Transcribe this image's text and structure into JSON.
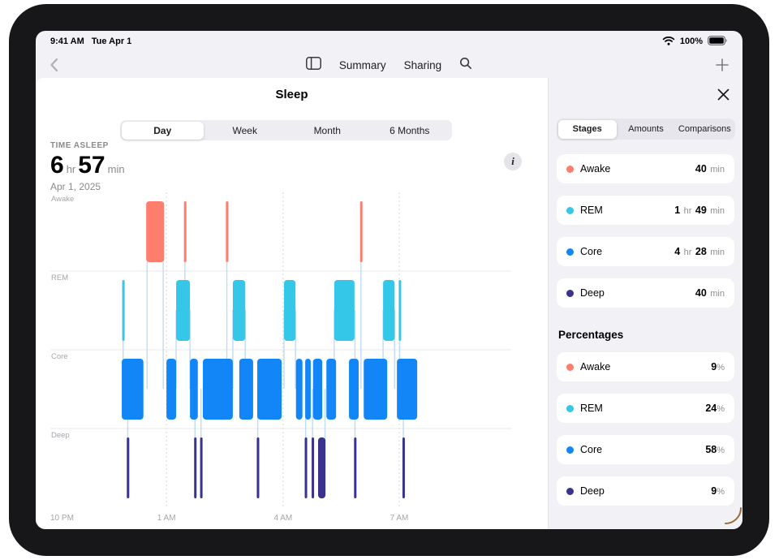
{
  "device": {
    "time": "9:41 AM",
    "date": "Tue Apr 1",
    "battery_label": "100%"
  },
  "nav": {
    "items": [
      "Summary",
      "Sharing"
    ]
  },
  "main": {
    "title": "Sleep",
    "tabs": [
      "Day",
      "Week",
      "Month",
      "6 Months"
    ],
    "selected_tab": "Day",
    "metric_label": "TIME ASLEEP",
    "metric_parts": [
      {
        "t": "6",
        "big": true
      },
      {
        "t": "hr",
        "big": false
      },
      {
        "t": "57",
        "big": true
      },
      {
        "t": "min",
        "big": false
      }
    ],
    "date_label": "Apr 1, 2025",
    "info_glyph": "i"
  },
  "sidebar": {
    "tabs": [
      "Stages",
      "Amounts",
      "Comparisons"
    ],
    "selected_tab": "Stages",
    "durations": [
      {
        "name": "Awake",
        "color": "#FF7D6C",
        "parts": [
          {
            "t": "40",
            "strong": true
          },
          {
            "t": "min",
            "strong": false
          }
        ]
      },
      {
        "name": "REM",
        "color": "#35C7E8",
        "parts": [
          {
            "t": "1",
            "strong": true
          },
          {
            "t": "hr",
            "strong": false
          },
          {
            "t": "49",
            "strong": true
          },
          {
            "t": "min",
            "strong": false
          }
        ]
      },
      {
        "name": "Core",
        "color": "#1386F7",
        "parts": [
          {
            "t": "4",
            "strong": true
          },
          {
            "t": "hr",
            "strong": false
          },
          {
            "t": "28",
            "strong": true
          },
          {
            "t": "min",
            "strong": false
          }
        ]
      },
      {
        "name": "Deep",
        "color": "#39328F",
        "parts": [
          {
            "t": "40",
            "strong": true
          },
          {
            "t": "min",
            "strong": false
          }
        ]
      }
    ],
    "percent_header": "Percentages",
    "percentages": [
      {
        "name": "Awake",
        "color": "#FF7D6C",
        "parts": [
          {
            "t": "9",
            "strong": true
          },
          {
            "t": "%",
            "strong": false
          }
        ]
      },
      {
        "name": "REM",
        "color": "#35C7E8",
        "parts": [
          {
            "t": "24",
            "strong": true
          },
          {
            "t": "%",
            "strong": false
          }
        ]
      },
      {
        "name": "Core",
        "color": "#1386F7",
        "parts": [
          {
            "t": "58",
            "strong": true
          },
          {
            "t": "%",
            "strong": false
          }
        ]
      },
      {
        "name": "Deep",
        "color": "#39328F",
        "parts": [
          {
            "t": "9",
            "strong": true
          },
          {
            "t": "%",
            "strong": false
          }
        ]
      }
    ]
  },
  "chart_data": {
    "type": "hypnogram",
    "title": "Sleep stages, Apr 1, 2025",
    "rows": [
      "Awake",
      "REM",
      "Core",
      "Deep"
    ],
    "colors": {
      "Awake": "#FF7D6C",
      "REM": "#35C7E8",
      "Core": "#1386F7",
      "Deep": "#39328F"
    },
    "x_ticks": [
      {
        "label": "10 PM",
        "pos": 0
      },
      {
        "label": "1 AM",
        "pos": 0.252
      },
      {
        "label": "4 AM",
        "pos": 0.505
      },
      {
        "label": "7 AM",
        "pos": 0.757
      }
    ],
    "gridlines": [
      0.252,
      0.505,
      0.757
    ],
    "segments": [
      {
        "stage": "Awake",
        "start": 0.208,
        "end": 0.247
      },
      {
        "stage": "Awake",
        "start": 0.29,
        "end": 0.294
      },
      {
        "stage": "Awake",
        "start": 0.381,
        "end": 0.385
      },
      {
        "stage": "Awake",
        "start": 0.672,
        "end": 0.676
      },
      {
        "stage": "REM",
        "start": 0.156,
        "end": 0.161
      },
      {
        "stage": "REM",
        "start": 0.273,
        "end": 0.303
      },
      {
        "stage": "REM",
        "start": 0.396,
        "end": 0.423
      },
      {
        "stage": "REM",
        "start": 0.507,
        "end": 0.532
      },
      {
        "stage": "REM",
        "start": 0.616,
        "end": 0.66
      },
      {
        "stage": "REM",
        "start": 0.722,
        "end": 0.747
      },
      {
        "stage": "REM",
        "start": 0.756,
        "end": 0.76
      },
      {
        "stage": "Core",
        "start": 0.155,
        "end": 0.202
      },
      {
        "stage": "Core",
        "start": 0.252,
        "end": 0.273
      },
      {
        "stage": "Core",
        "start": 0.303,
        "end": 0.32
      },
      {
        "stage": "Core",
        "start": 0.331,
        "end": 0.396
      },
      {
        "stage": "Core",
        "start": 0.41,
        "end": 0.44
      },
      {
        "stage": "Core",
        "start": 0.449,
        "end": 0.502
      },
      {
        "stage": "Core",
        "start": 0.533,
        "end": 0.547
      },
      {
        "stage": "Core",
        "start": 0.553,
        "end": 0.565
      },
      {
        "stage": "Core",
        "start": 0.57,
        "end": 0.59
      },
      {
        "stage": "Core",
        "start": 0.599,
        "end": 0.62
      },
      {
        "stage": "Core",
        "start": 0.648,
        "end": 0.669
      },
      {
        "stage": "Core",
        "start": 0.68,
        "end": 0.731
      },
      {
        "stage": "Core",
        "start": 0.752,
        "end": 0.796
      },
      {
        "stage": "Deep",
        "start": 0.166,
        "end": 0.17
      },
      {
        "stage": "Deep",
        "start": 0.312,
        "end": 0.316
      },
      {
        "stage": "Deep",
        "start": 0.325,
        "end": 0.329
      },
      {
        "stage": "Deep",
        "start": 0.448,
        "end": 0.452
      },
      {
        "stage": "Deep",
        "start": 0.552,
        "end": 0.556
      },
      {
        "stage": "Deep",
        "start": 0.567,
        "end": 0.571
      },
      {
        "stage": "Deep",
        "start": 0.581,
        "end": 0.597
      },
      {
        "stage": "Deep",
        "start": 0.659,
        "end": 0.663
      },
      {
        "stage": "Deep",
        "start": 0.764,
        "end": 0.768
      }
    ],
    "connectors": [
      {
        "x": 0.158,
        "from": "REM",
        "to": "Core"
      },
      {
        "x": 0.168,
        "from": "Core",
        "to": "Deep"
      },
      {
        "x": 0.21,
        "from": "Awake",
        "to": "Core"
      },
      {
        "x": 0.245,
        "from": "Awake",
        "to": "Core"
      },
      {
        "x": 0.273,
        "from": "REM",
        "to": "Core"
      },
      {
        "x": 0.292,
        "from": "Awake",
        "to": "REM"
      },
      {
        "x": 0.303,
        "from": "REM",
        "to": "Core"
      },
      {
        "x": 0.314,
        "from": "Core",
        "to": "Deep"
      },
      {
        "x": 0.327,
        "from": "Core",
        "to": "Deep"
      },
      {
        "x": 0.383,
        "from": "Awake",
        "to": "Core"
      },
      {
        "x": 0.396,
        "from": "REM",
        "to": "Core"
      },
      {
        "x": 0.423,
        "from": "REM",
        "to": "Core"
      },
      {
        "x": 0.45,
        "from": "Core",
        "to": "Deep"
      },
      {
        "x": 0.507,
        "from": "REM",
        "to": "Core"
      },
      {
        "x": 0.532,
        "from": "REM",
        "to": "Core"
      },
      {
        "x": 0.554,
        "from": "Core",
        "to": "Deep"
      },
      {
        "x": 0.569,
        "from": "Core",
        "to": "Deep"
      },
      {
        "x": 0.596,
        "from": "Core",
        "to": "Deep"
      },
      {
        "x": 0.616,
        "from": "REM",
        "to": "Core"
      },
      {
        "x": 0.661,
        "from": "REM",
        "to": "Deep"
      },
      {
        "x": 0.674,
        "from": "Awake",
        "to": "Core"
      },
      {
        "x": 0.722,
        "from": "REM",
        "to": "Core"
      },
      {
        "x": 0.747,
        "from": "REM",
        "to": "Core"
      },
      {
        "x": 0.758,
        "from": "REM",
        "to": "Core"
      },
      {
        "x": 0.766,
        "from": "Core",
        "to": "Deep"
      }
    ]
  }
}
